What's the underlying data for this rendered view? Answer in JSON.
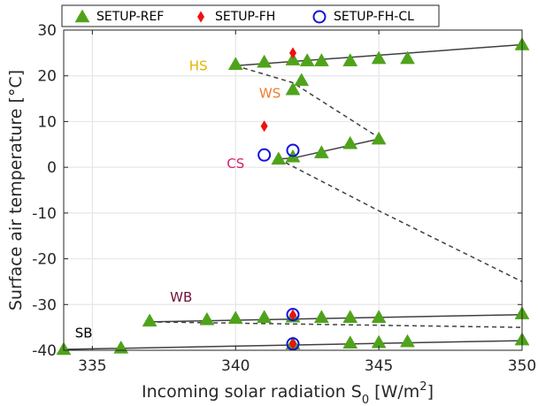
{
  "chart_data": {
    "type": "scatter",
    "xlabel": "Incoming solar radiation S",
    "xlabel_sub": "0",
    "xlabel_unit_prefix": " [W/m",
    "xlabel_unit_sup": "2",
    "xlabel_unit_suffix": "]",
    "ylabel": "Surface air temperature [°C]",
    "xlim": [
      334,
      350
    ],
    "ylim": [
      -40,
      30
    ],
    "xticks": [
      335,
      340,
      345,
      350
    ],
    "yticks": [
      -40,
      -30,
      -20,
      -10,
      0,
      10,
      20,
      30
    ],
    "grid": true,
    "legend_position": "top",
    "colors": {
      "ref": "#4fa31b",
      "fh": "#ee1111",
      "fhcl": "#1111dd",
      "stable_line": "#404040",
      "unstable_line": "#404040",
      "hs": "#e6b400",
      "ws": "#ee7f2e",
      "cs": "#d61f69",
      "wb": "#6e0f3a",
      "sb": "#000000"
    },
    "series": [
      {
        "name": "SETUP-REF",
        "marker": "triangle",
        "points": [
          [
            340,
            22.5
          ],
          [
            341,
            23
          ],
          [
            342,
            23.5
          ],
          [
            342.5,
            23.3
          ],
          [
            343,
            23.3
          ],
          [
            344,
            23.3
          ],
          [
            345,
            23.8
          ],
          [
            346,
            23.8
          ],
          [
            350,
            26.8
          ],
          [
            342.3,
            19
          ],
          [
            342,
            17
          ],
          [
            341.5,
            1.8
          ],
          [
            342,
            2.3
          ],
          [
            343,
            3.2
          ],
          [
            344,
            5.2
          ],
          [
            345,
            6.2
          ],
          [
            337,
            -33.6
          ],
          [
            339,
            -33.3
          ],
          [
            340,
            -33
          ],
          [
            341,
            -32.8
          ],
          [
            342,
            -32.7
          ],
          [
            343,
            -32.8
          ],
          [
            344,
            -32.8
          ],
          [
            345,
            -32.8
          ],
          [
            350,
            -32
          ],
          [
            334,
            -39.8
          ],
          [
            336,
            -39.5
          ],
          [
            342,
            -38.6
          ],
          [
            344,
            -38.4
          ],
          [
            345,
            -38.3
          ],
          [
            346,
            -38.1
          ],
          [
            350,
            -37.7
          ]
        ]
      },
      {
        "name": "SETUP-FH",
        "marker": "diamond",
        "points": [
          [
            342,
            25
          ],
          [
            341,
            9
          ],
          [
            342,
            -32.3
          ],
          [
            342,
            -38.6
          ]
        ]
      },
      {
        "name": "SETUP-FH-CL",
        "marker": "circle-open",
        "points": [
          [
            342,
            3.7
          ],
          [
            341,
            2.7
          ],
          [
            342,
            -32.2
          ],
          [
            342,
            -38.6
          ]
        ]
      }
    ],
    "branches": [
      {
        "style": "solid",
        "points": [
          [
            340,
            22.2
          ],
          [
            350,
            26.8
          ]
        ]
      },
      {
        "style": "dashed",
        "points": [
          [
            340,
            22.2
          ],
          [
            342,
            18.5
          ],
          [
            345,
            6.5
          ]
        ]
      },
      {
        "style": "solid",
        "points": [
          [
            341.5,
            1.8
          ],
          [
            342,
            2
          ],
          [
            345,
            6.2
          ]
        ]
      },
      {
        "style": "dashed",
        "points": [
          [
            341.5,
            1.8
          ],
          [
            345,
            -9.5
          ],
          [
            350,
            -25
          ]
        ]
      },
      {
        "style": "solid",
        "points": [
          [
            337,
            -33.8
          ],
          [
            350,
            -32.2
          ]
        ]
      },
      {
        "style": "dashed",
        "points": [
          [
            337,
            -33.8
          ],
          [
            350,
            -35
          ]
        ]
      },
      {
        "style": "solid",
        "points": [
          [
            334,
            -39.8
          ],
          [
            350,
            -37.9
          ]
        ]
      }
    ],
    "annotations": [
      {
        "text": "HS",
        "x": 338.7,
        "y": 21.2,
        "color_key": "hs"
      },
      {
        "text": "WS",
        "x": 341.2,
        "y": 15.2,
        "color_key": "ws"
      },
      {
        "text": "CS",
        "x": 340,
        "y": -0.2,
        "color_key": "cs"
      },
      {
        "text": "WB",
        "x": 338.1,
        "y": -29.4,
        "color_key": "wb"
      },
      {
        "text": "SB",
        "x": 334.7,
        "y": -37.2,
        "color_key": "sb"
      }
    ]
  }
}
